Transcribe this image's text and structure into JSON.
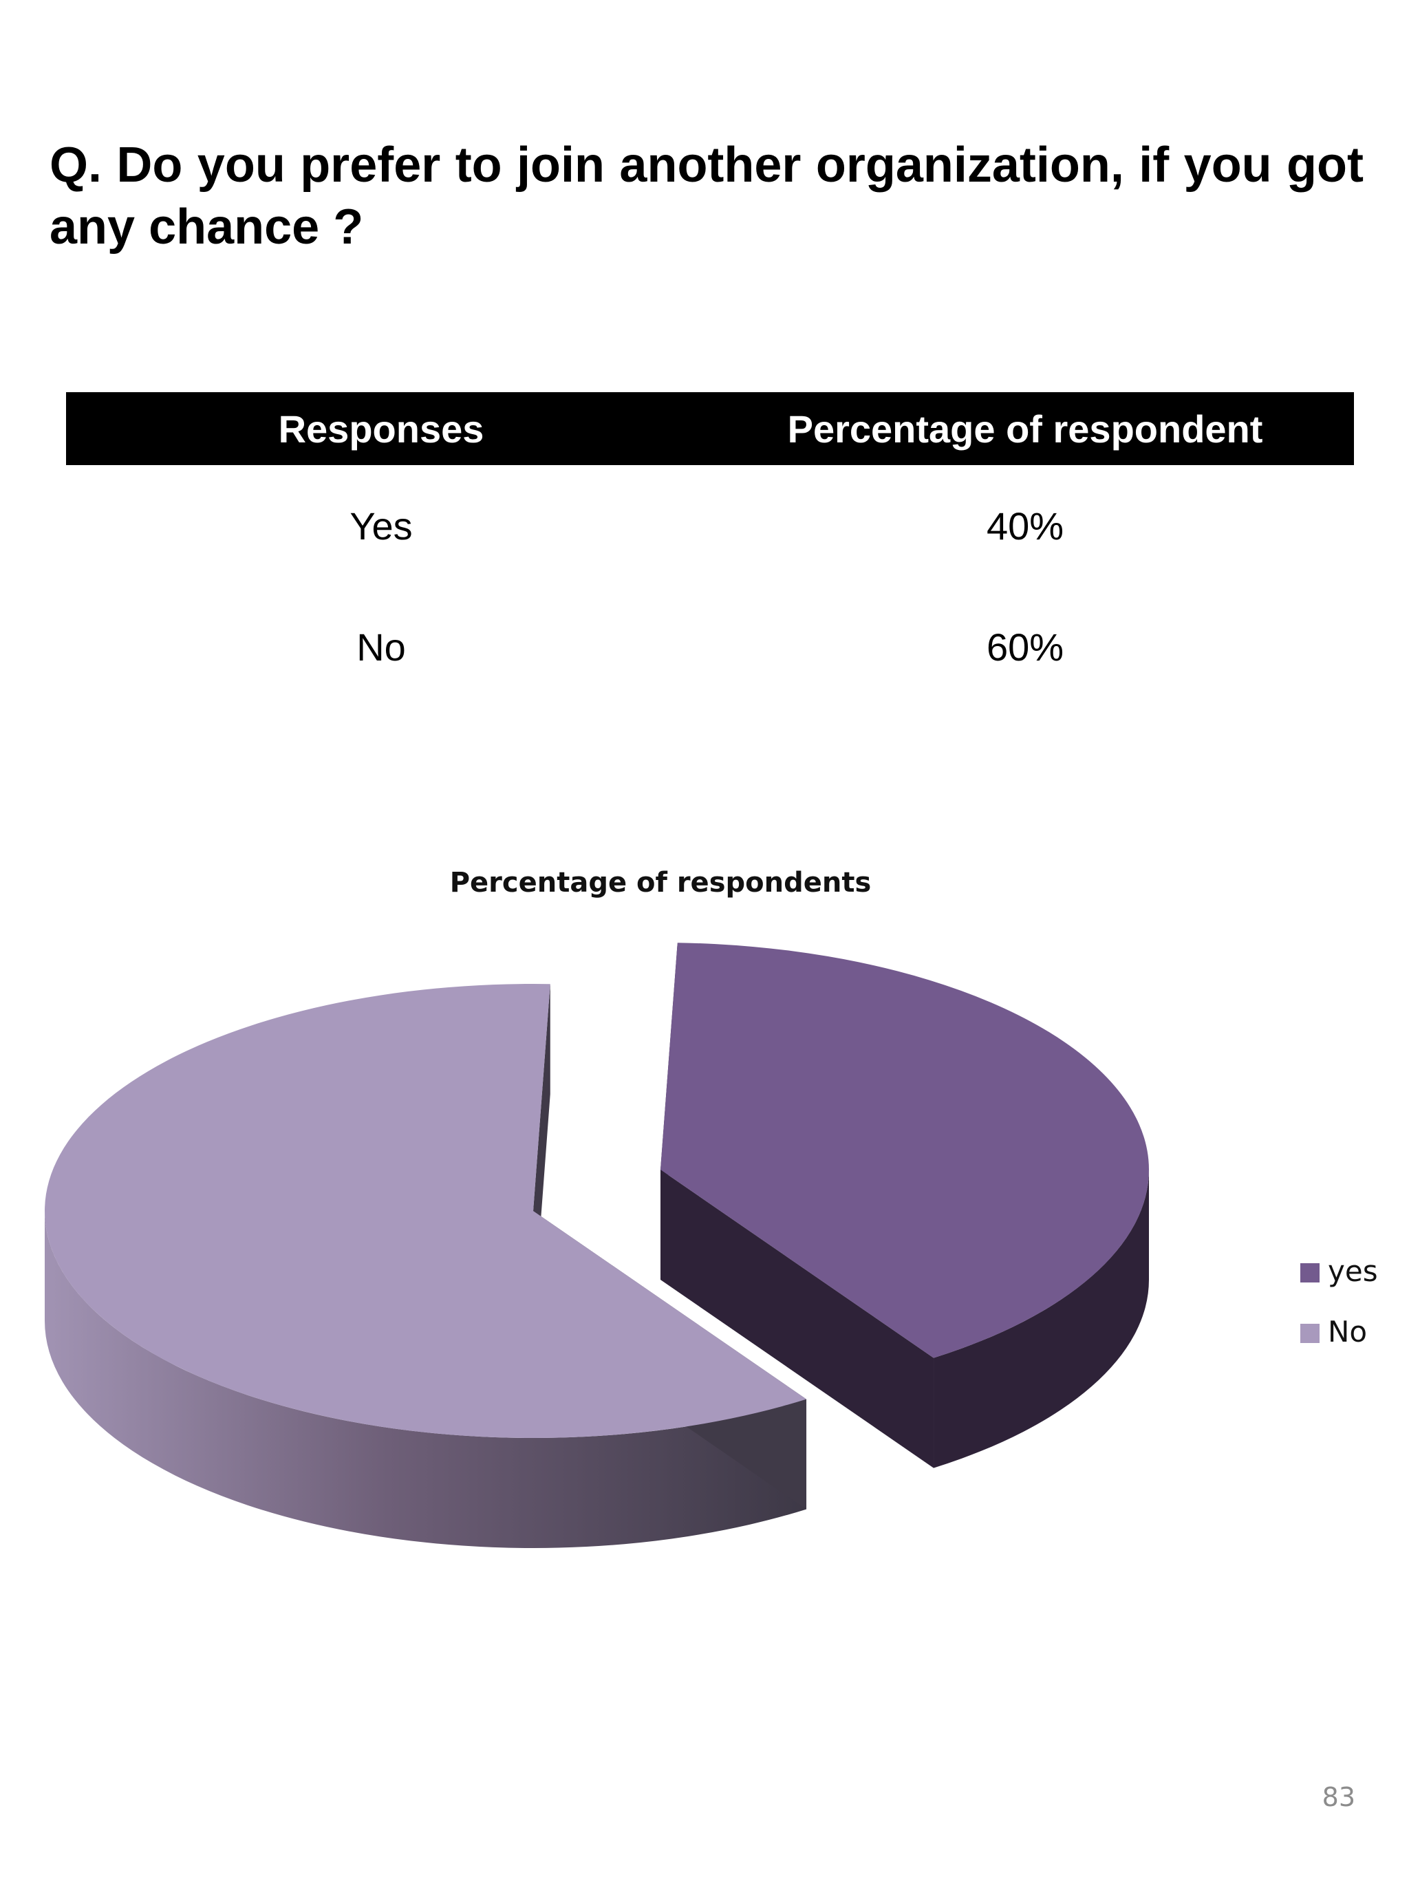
{
  "slide": {
    "question": "Q. Do you prefer to join another organization, if you got any chance ?",
    "page_number": "83"
  },
  "table": {
    "headers": [
      "Responses",
      "Percentage of respondent"
    ],
    "rows": [
      {
        "response": "Yes",
        "percentage": "40%"
      },
      {
        "response": "No",
        "percentage": "60%"
      }
    ]
  },
  "chart_data": {
    "type": "pie",
    "title": "Percentage of respondents",
    "categories": [
      "yes",
      "No"
    ],
    "values": [
      40,
      60
    ],
    "legend": "right",
    "colors": {
      "yes": "#735a8e",
      "yes_side": "#2e2238",
      "No": "#a899bd",
      "No_side_light": "#8f81a3",
      "No_side_dark": "#403a48"
    }
  }
}
